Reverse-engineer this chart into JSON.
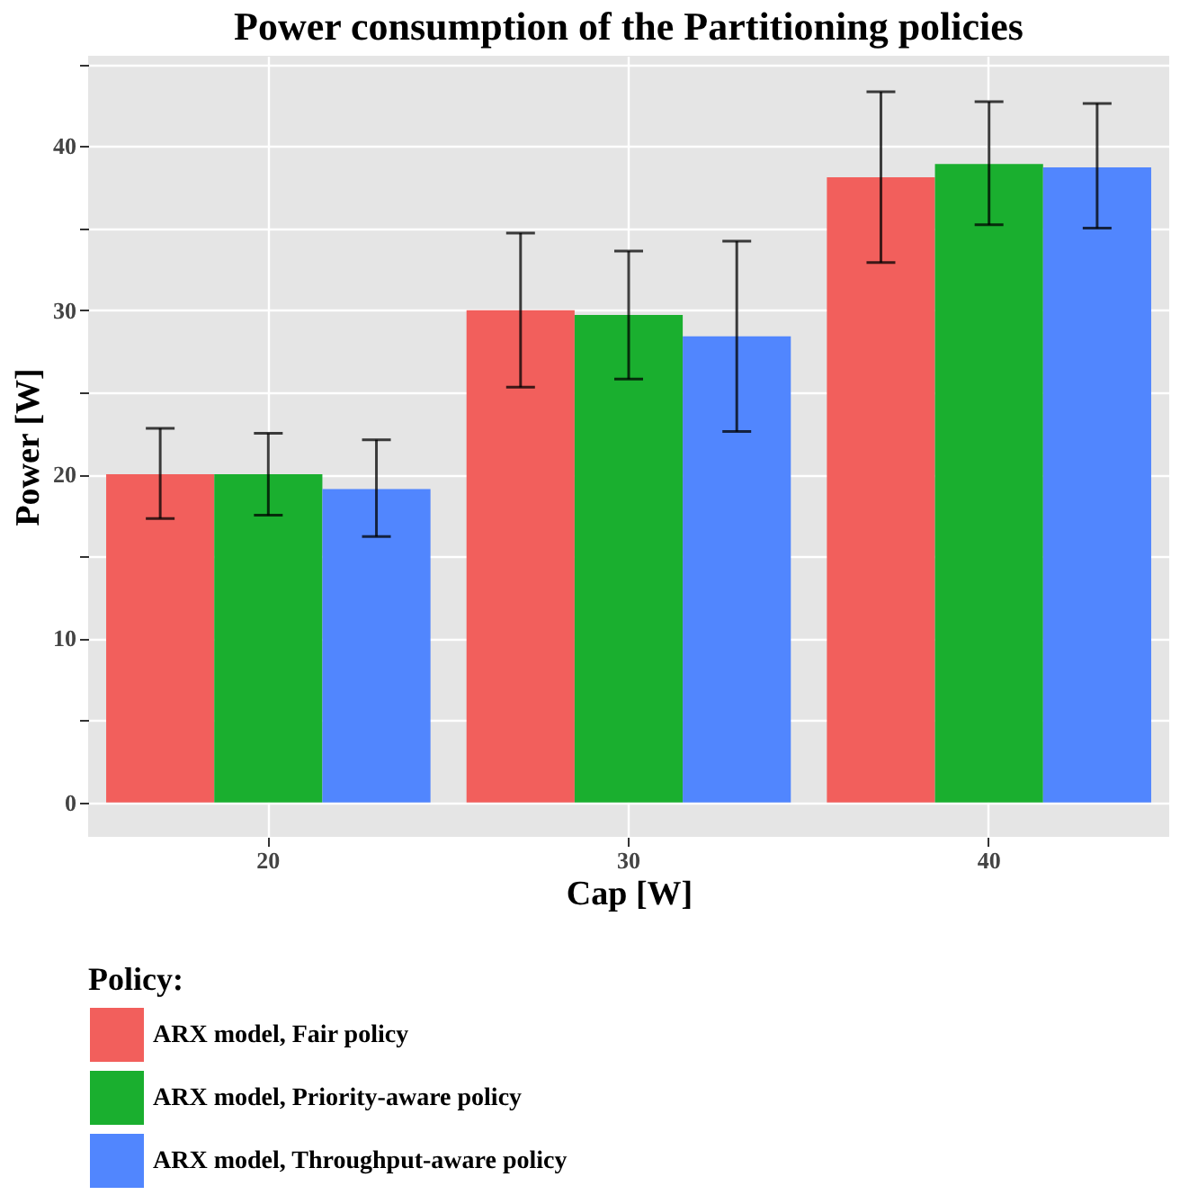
{
  "chart_data": {
    "type": "bar",
    "title": "Power consumption of the Partitioning policies",
    "xlabel": "Cap [W]",
    "ylabel": "Power [W]",
    "legend_title": "Policy:",
    "categories": [
      "20",
      "30",
      "40"
    ],
    "series": [
      {
        "name": "ARX model, Fair policy",
        "color": "#f25f5c",
        "values": [
          20.0,
          30.0,
          38.1
        ],
        "errors": [
          [
            17.3,
            22.8
          ],
          [
            25.3,
            34.7
          ],
          [
            32.9,
            43.3
          ]
        ]
      },
      {
        "name": "ARX model, Priority-aware policy",
        "color": "#1aaf2f",
        "values": [
          20.0,
          29.7,
          38.9
        ],
        "errors": [
          [
            17.5,
            22.5
          ],
          [
            25.8,
            33.6
          ],
          [
            35.2,
            42.7
          ]
        ]
      },
      {
        "name": "ARX model, Throughput-aware policy",
        "color": "#5186fe",
        "values": [
          19.1,
          28.4,
          38.7
        ],
        "errors": [
          [
            16.2,
            22.1
          ],
          [
            22.6,
            34.2
          ],
          [
            35.0,
            42.6
          ]
        ]
      }
    ],
    "ylim": [
      -2.1,
      45.5
    ],
    "yticks": [
      0,
      {
        "value": 5,
        "label": null
      },
      10,
      {
        "value": 15,
        "label": null
      },
      20,
      {
        "value": 25,
        "label": null
      },
      30,
      {
        "value": 35,
        "label": null
      },
      40,
      {
        "value": 45,
        "label": null
      }
    ],
    "grid": true,
    "legend": "bottom"
  }
}
